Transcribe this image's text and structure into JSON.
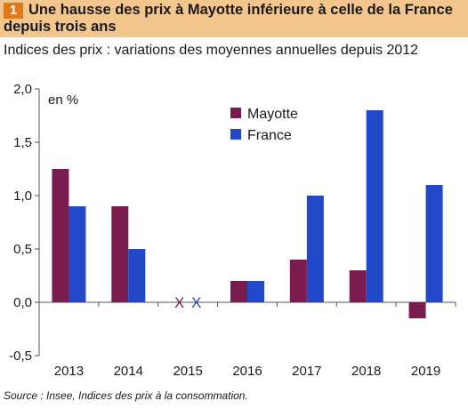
{
  "header": {
    "number": "1",
    "title": "Une hausse des prix à Mayotte inférieure à celle de la France depuis trois ans",
    "subtitle": "Indices des prix : variations des moyennes annuelles depuis 2012"
  },
  "footer": {
    "source": "Source : Insee, Indices des prix à la consommation."
  },
  "colors": {
    "mayotte": "#7b1c4f",
    "france": "#2148c8",
    "title_band": "#f2c68d",
    "title_number_box": "#e07b1a"
  },
  "chart_data": {
    "type": "bar",
    "unit_label": "en %",
    "categories": [
      "2013",
      "2014",
      "2015",
      "2016",
      "2017",
      "2018",
      "2019"
    ],
    "series": [
      {
        "name": "Mayotte",
        "values": [
          1.25,
          0.9,
          null,
          0.2,
          0.4,
          0.3,
          -0.15
        ]
      },
      {
        "name": "France",
        "values": [
          0.9,
          0.5,
          null,
          0.2,
          1.0,
          1.8,
          1.1
        ]
      }
    ],
    "missing_marker": "X",
    "yticks": [
      "2,0",
      "1,5",
      "1,0",
      "0,5",
      "0,0",
      "-0,5"
    ],
    "ylim": [
      -0.5,
      2.0
    ],
    "grid": false,
    "legend_position": "top-center"
  }
}
